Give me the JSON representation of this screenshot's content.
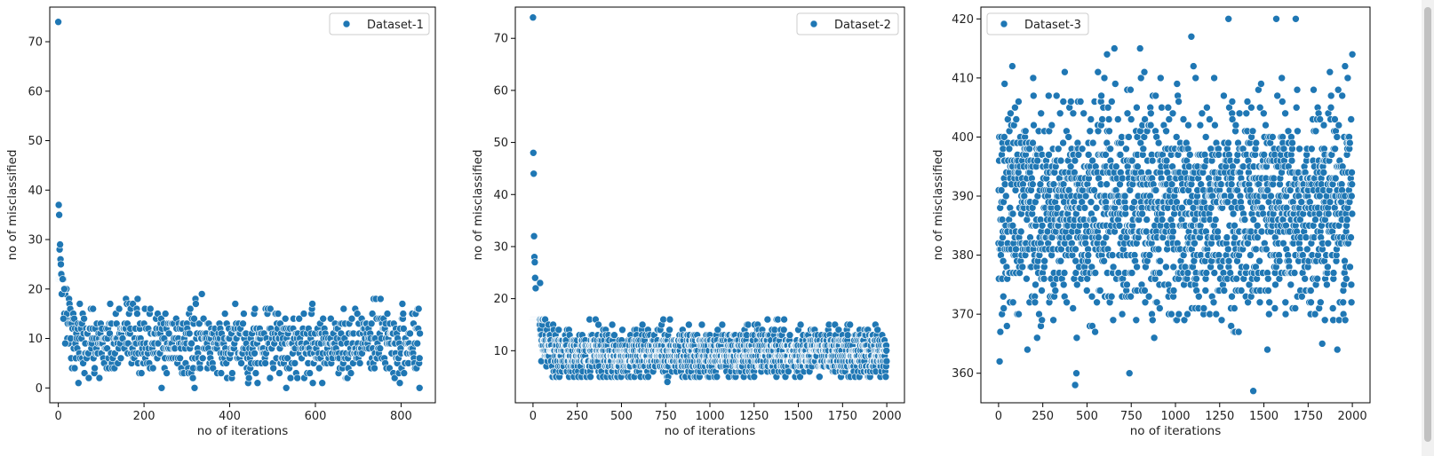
{
  "chart_data": [
    {
      "type": "scatter",
      "xlabel": "no of iterations",
      "ylabel": "no of misclassified",
      "legend": {
        "label": "Dataset-1",
        "position": "top-right"
      },
      "color": "#1f77b4",
      "xlim": [
        -20,
        880
      ],
      "ylim": [
        -3,
        77
      ],
      "xticks": [
        0,
        200,
        400,
        600,
        800
      ],
      "yticks": [
        0,
        10,
        20,
        30,
        40,
        50,
        60,
        70
      ],
      "pattern": {
        "n": 845,
        "start": 74,
        "plateau": 9,
        "decay": 12,
        "spread": 3.5,
        "min": 0,
        "max": 22
      },
      "series": [
        {
          "x": [
            0,
            1,
            2,
            3,
            4,
            5,
            6,
            7,
            8,
            10,
            12,
            14,
            16,
            465,
            843
          ],
          "y": [
            74,
            37,
            35,
            28,
            29,
            26,
            25,
            23,
            19,
            22,
            14,
            20,
            9,
            1,
            0
          ]
        }
      ]
    },
    {
      "type": "scatter",
      "xlabel": "no of iterations",
      "ylabel": "no of misclassified",
      "legend": {
        "label": "Dataset-2",
        "position": "top-right"
      },
      "color": "#1f77b4",
      "xlim": [
        -100,
        2100
      ],
      "ylim": [
        0,
        76
      ],
      "xticks": [
        0,
        250,
        500,
        750,
        1000,
        1250,
        1500,
        1750,
        2000
      ],
      "yticks": [
        10,
        20,
        30,
        40,
        50,
        60,
        70
      ],
      "pattern": {
        "n": 2000,
        "start": 74,
        "plateau": 9.5,
        "decay": 20,
        "spread": 2.2,
        "min": 5,
        "max": 16
      },
      "series": [
        {
          "x": [
            0,
            2,
            4,
            6,
            8,
            10,
            12,
            15,
            40,
            760
          ],
          "y": [
            74,
            48,
            44,
            32,
            28,
            27,
            24,
            22,
            23,
            4
          ]
        }
      ]
    },
    {
      "type": "scatter",
      "xlabel": "no of iterations",
      "ylabel": "no of misclassified",
      "legend": {
        "label": "Dataset-3",
        "position": "top-left"
      },
      "color": "#1f77b4",
      "xlim": [
        -100,
        2100
      ],
      "ylim": [
        355,
        422
      ],
      "xticks": [
        0,
        250,
        500,
        750,
        1000,
        1250,
        1500,
        1750,
        2000
      ],
      "yticks": [
        360,
        370,
        380,
        390,
        400,
        410,
        420
      ],
      "pattern": {
        "n": 2000,
        "center": 388,
        "spread": 9,
        "min": 357,
        "max": 420
      },
      "series": [
        {
          "x": [
            1300,
            1680,
            1440,
            440,
            740,
            1520,
            1090,
            1830,
            2000
          ],
          "y": [
            420,
            420,
            357,
            360,
            360,
            364,
            417,
            365,
            414
          ]
        }
      ]
    }
  ]
}
